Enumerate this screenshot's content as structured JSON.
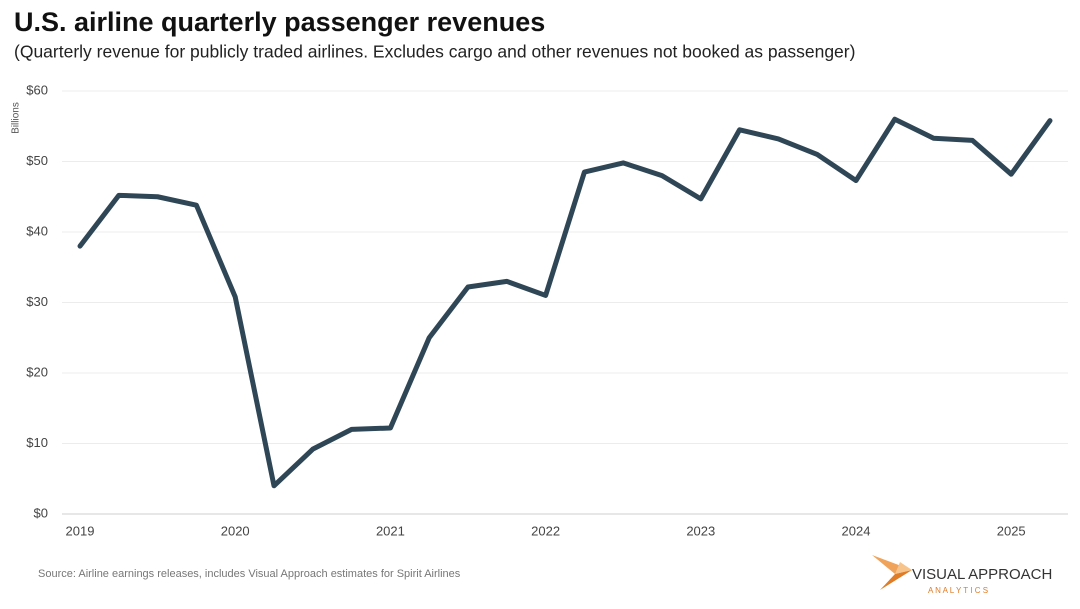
{
  "chart_data": {
    "type": "line",
    "title": "U.S. airline quarterly passenger revenues",
    "subtitle": "(Quarterly revenue for publicly traded airlines.  Excludes cargo and other revenues not booked as passenger)",
    "y_label": "Billions",
    "categories": [
      "2019",
      null,
      null,
      null,
      "2020",
      null,
      null,
      null,
      "2021",
      null,
      null,
      null,
      "2022",
      null,
      null,
      null,
      "2023",
      null,
      null,
      null,
      "2024",
      null,
      null,
      null,
      "2025",
      null
    ],
    "series": [
      {
        "name": "Passenger revenue",
        "color": "#2f4656",
        "values": [
          38,
          45.2,
          45,
          43.8,
          30.8,
          4,
          9.2,
          12,
          12.2,
          25,
          32.2,
          33,
          31,
          48.5,
          49.8,
          48,
          44.7,
          54.5,
          53.2,
          51,
          47.3,
          56,
          53.3,
          53,
          48.2,
          55.8
        ]
      }
    ],
    "ylim": [
      0,
      60
    ],
    "yticks": [
      {
        "value": 0,
        "label": "$0"
      },
      {
        "value": 10,
        "label": "$10"
      },
      {
        "value": 20,
        "label": "$20"
      },
      {
        "value": 30,
        "label": "$30"
      },
      {
        "value": 40,
        "label": "$40"
      },
      {
        "value": 50,
        "label": "$50"
      },
      {
        "value": 60,
        "label": "$60"
      }
    ],
    "grid": true,
    "source": "Source:  Airline earnings releases, includes Visual Approach estimates for Spirit Airlines",
    "brand": {
      "name": "VISUAL APPROACH",
      "tagline": "A N A L Y T I C S"
    }
  }
}
